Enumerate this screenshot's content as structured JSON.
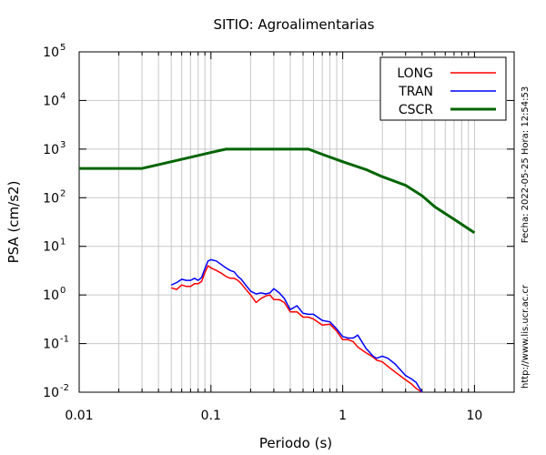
{
  "chart_data": {
    "type": "line",
    "title": "SITIO: Agroalimentarias",
    "xlabel": "Periodo (s)",
    "ylabel": "PSA (cm/s2)",
    "x_scale": "log",
    "y_scale": "log",
    "xlim": [
      0.01,
      20
    ],
    "ylim": [
      0.01,
      100000
    ],
    "grid": true,
    "legend_position": "top-right",
    "x_ticks": [
      {
        "value": 0.01,
        "label": "0.01"
      },
      {
        "value": 0.1,
        "label": "0.1"
      },
      {
        "value": 1,
        "label": "1"
      },
      {
        "value": 10,
        "label": "10"
      }
    ],
    "y_ticks": [
      {
        "value": 0.01,
        "base": "10",
        "exp": "-2"
      },
      {
        "value": 0.1,
        "base": "10",
        "exp": "-1"
      },
      {
        "value": 1,
        "base": "10",
        "exp": "0"
      },
      {
        "value": 10,
        "base": "10",
        "exp": "1"
      },
      {
        "value": 100,
        "base": "10",
        "exp": "2"
      },
      {
        "value": 1000,
        "base": "10",
        "exp": "3"
      },
      {
        "value": 10000,
        "base": "10",
        "exp": "4"
      },
      {
        "value": 100000,
        "base": "10",
        "exp": "5"
      }
    ],
    "side_text_right": "Fecha: 2022-05-25  Hora: 12:54:53",
    "side_text_bottom": "http://www.lis.ucr.ac.cr",
    "series": [
      {
        "name": "LONG",
        "color": "#ff0000",
        "x": [
          0.05,
          0.055,
          0.06,
          0.065,
          0.07,
          0.075,
          0.08,
          0.085,
          0.09,
          0.095,
          0.1,
          0.11,
          0.12,
          0.13,
          0.14,
          0.15,
          0.16,
          0.17,
          0.18,
          0.2,
          0.22,
          0.24,
          0.26,
          0.28,
          0.3,
          0.33,
          0.36,
          0.4,
          0.45,
          0.5,
          0.55,
          0.6,
          0.7,
          0.8,
          0.9,
          1.0,
          1.1,
          1.2,
          1.3,
          1.5,
          1.7,
          1.8,
          2.0,
          2.2,
          2.5,
          3.0,
          3.3,
          3.6,
          4.0
        ],
        "y": [
          1.4,
          1.3,
          1.6,
          1.5,
          1.5,
          1.7,
          1.7,
          1.9,
          2.9,
          4.0,
          3.6,
          3.2,
          2.8,
          2.4,
          2.2,
          2.2,
          2.0,
          1.7,
          1.4,
          1.0,
          0.7,
          0.85,
          0.95,
          1.0,
          0.8,
          0.8,
          0.7,
          0.45,
          0.45,
          0.35,
          0.35,
          0.32,
          0.24,
          0.25,
          0.18,
          0.12,
          0.12,
          0.11,
          0.085,
          0.065,
          0.053,
          0.046,
          0.042,
          0.034,
          0.026,
          0.018,
          0.015,
          0.012,
          0.01
        ]
      },
      {
        "name": "TRAN",
        "color": "#0000ff",
        "x": [
          0.05,
          0.055,
          0.06,
          0.065,
          0.07,
          0.075,
          0.08,
          0.085,
          0.09,
          0.095,
          0.1,
          0.11,
          0.12,
          0.13,
          0.14,
          0.15,
          0.16,
          0.17,
          0.18,
          0.2,
          0.22,
          0.24,
          0.26,
          0.28,
          0.3,
          0.33,
          0.36,
          0.4,
          0.45,
          0.5,
          0.55,
          0.6,
          0.7,
          0.8,
          0.9,
          1.0,
          1.1,
          1.2,
          1.3,
          1.5,
          1.7,
          1.8,
          2.0,
          2.2,
          2.5,
          3.0,
          3.3,
          3.6,
          4.0
        ],
        "y": [
          1.6,
          1.8,
          2.1,
          2.0,
          2.0,
          2.2,
          2.0,
          2.3,
          3.5,
          5.0,
          5.3,
          5.0,
          4.2,
          3.6,
          3.2,
          3.0,
          2.4,
          2.1,
          1.7,
          1.2,
          1.05,
          1.1,
          1.05,
          1.1,
          1.35,
          1.1,
          0.85,
          0.5,
          0.6,
          0.42,
          0.4,
          0.4,
          0.3,
          0.28,
          0.2,
          0.14,
          0.13,
          0.13,
          0.15,
          0.08,
          0.055,
          0.05,
          0.055,
          0.05,
          0.038,
          0.022,
          0.019,
          0.016,
          0.01
        ]
      },
      {
        "name": "CSCR",
        "color": "#006400",
        "x": [
          0.01,
          0.03,
          0.04,
          0.05,
          0.07,
          0.1,
          0.13,
          0.2,
          0.3,
          0.55,
          0.7,
          1.0,
          1.5,
          2.0,
          3.0,
          4.0,
          5.0,
          7.0,
          10.0
        ],
        "y": [
          400,
          400,
          480,
          550,
          680,
          850,
          1000,
          1000,
          1000,
          1000,
          780,
          550,
          380,
          270,
          180,
          110,
          65,
          36,
          19
        ]
      }
    ]
  }
}
